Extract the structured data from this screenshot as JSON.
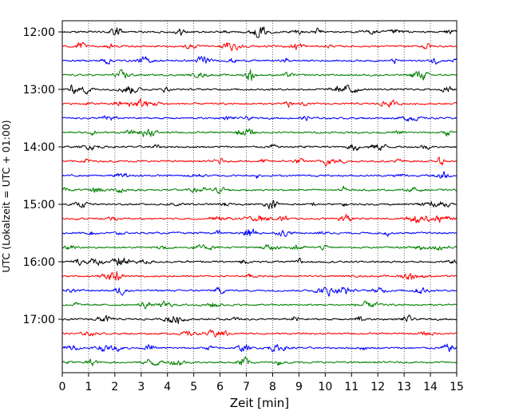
{
  "chart_data": {
    "type": "line",
    "subtype": "seismogram-helicorder",
    "xlabel": "Zeit  [min]",
    "ylabel": "UTC (Lokalzeit = UTC + 01:00)",
    "xlim": [
      0,
      15
    ],
    "x_ticks": [
      "0",
      "1",
      "2",
      "3",
      "4",
      "5",
      "6",
      "7",
      "8",
      "9",
      "10",
      "11",
      "12",
      "13",
      "14",
      "15"
    ],
    "y_tick_labels": [
      "12:00",
      "13:00",
      "14:00",
      "15:00",
      "16:00",
      "17:00"
    ],
    "trace_start_times": [
      "12:00",
      "12:15",
      "12:30",
      "12:45",
      "13:00",
      "13:15",
      "13:30",
      "13:45",
      "14:00",
      "14:15",
      "14:30",
      "14:45",
      "15:00",
      "15:15",
      "15:30",
      "15:45",
      "16:00",
      "16:15",
      "16:30",
      "16:45",
      "17:00",
      "17:15",
      "17:30",
      "17:45"
    ],
    "trace_minutes": 15,
    "color_cycle": [
      "#000000",
      "#ff0000",
      "#0000ff",
      "#008000"
    ],
    "vertical_grid": "dotted",
    "legend": "none"
  }
}
